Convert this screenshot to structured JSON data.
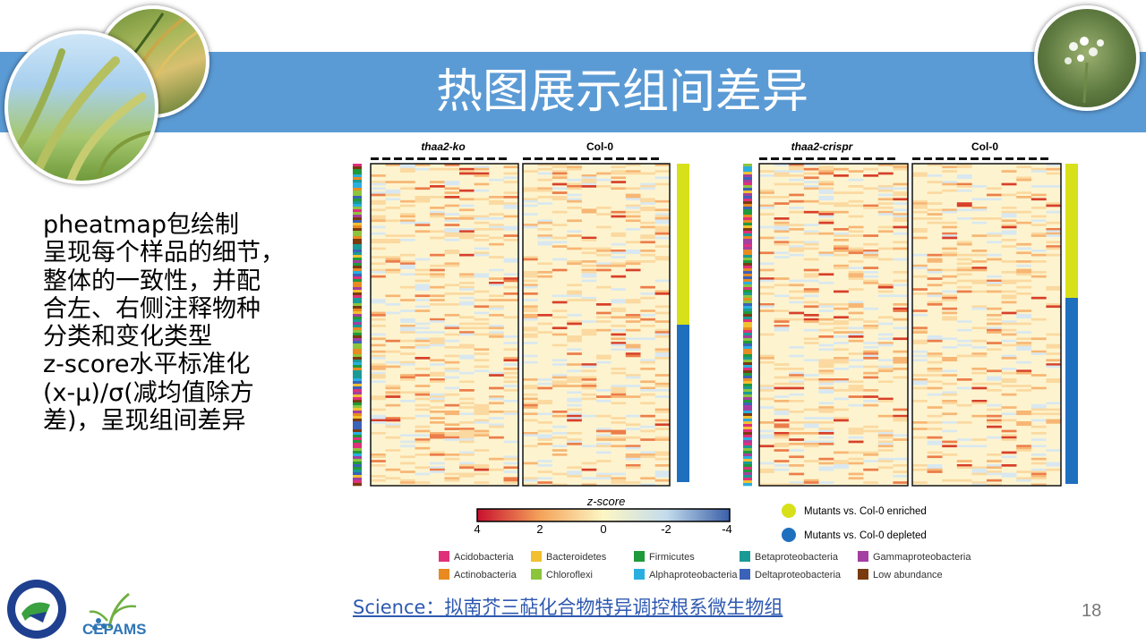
{
  "slide": {
    "title": "热图展示组间差异",
    "body_lines": [
      "pheatmap包绘制",
      "呈现每个样品的细节，",
      "整体的一致性，并配",
      "合左、右侧注释物种",
      "分类和变化类型",
      "z-score水平标准化",
      "(x-μ)/σ(减均值除方",
      "差)，呈现组间差异"
    ],
    "source_link": "Science：拟南芥三萜化合物特异调控根系微生物组",
    "page_number": "18",
    "logo_text": "CEPAMS"
  },
  "figure": {
    "left_panel": {
      "group1": "thaa2-ko",
      "group2": "Col-0"
    },
    "right_panel": {
      "group1": "thaa2-crispr",
      "group2": "Col-0"
    },
    "colorbar": {
      "title": "z-score",
      "ticks": [
        "4",
        "2",
        "0",
        "-2",
        "-4"
      ]
    },
    "change_legend": [
      {
        "label": "Mutants vs. Col-0 enriched",
        "color": "#d8e01a"
      },
      {
        "label": "Mutants vs. Col-0 depleted",
        "color": "#1f6fbf"
      }
    ],
    "taxa_legend": [
      {
        "label": "Acidobacteria",
        "color": "#e0307a"
      },
      {
        "label": "Bacteroidetes",
        "color": "#f2c030"
      },
      {
        "label": "Firmicutes",
        "color": "#1f9a3a"
      },
      {
        "label": "Betaproteobacteria",
        "color": "#1a9a94"
      },
      {
        "label": "Gammaproteobacteria",
        "color": "#a43ea0"
      },
      {
        "label": "Actinobacteria",
        "color": "#e88a20"
      },
      {
        "label": "Chloroflexi",
        "color": "#8cc43c"
      },
      {
        "label": "Alphaproteobacteria",
        "color": "#2aaee0"
      },
      {
        "label": "Deltaproteobacteria",
        "color": "#3a62b8"
      },
      {
        "label": "Low abundance",
        "color": "#7a3a10"
      }
    ]
  }
}
